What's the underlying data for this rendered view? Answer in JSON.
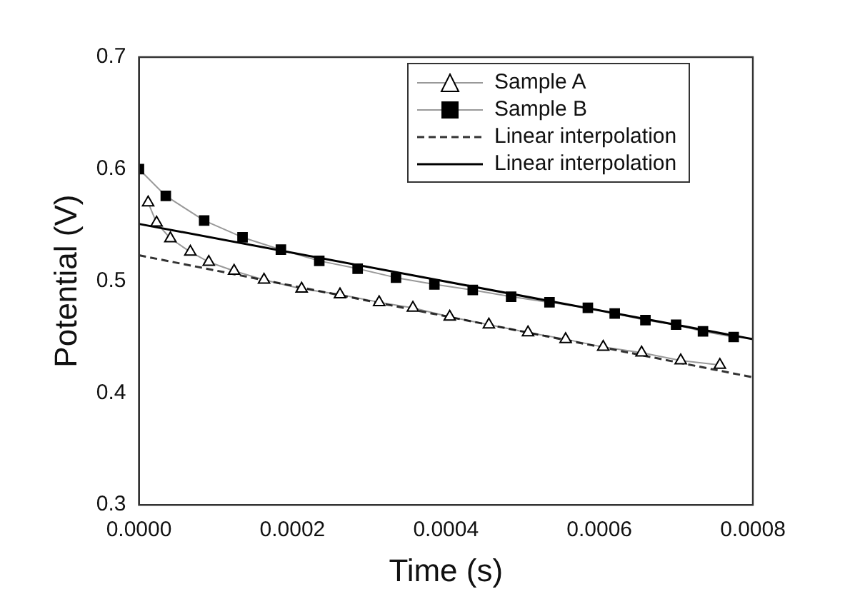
{
  "chart_data": {
    "type": "line",
    "xlabel": "Time (s)",
    "ylabel": "Potential (V)",
    "xlim": [
      0,
      0.0008
    ],
    "ylim": [
      0.3,
      0.7
    ],
    "xticks": [
      {
        "value": 0,
        "label": "0.0000"
      },
      {
        "value": 0.0002,
        "label": "0.0002"
      },
      {
        "value": 0.0004,
        "label": "0.0004"
      },
      {
        "value": 0.0006,
        "label": "0.0006"
      },
      {
        "value": 0.0008,
        "label": "0.0008"
      }
    ],
    "yticks": [
      0.3,
      0.4,
      0.5,
      0.6,
      0.7
    ],
    "grid": false,
    "legend": "top right",
    "series": [
      {
        "name": "Sample A",
        "color": "#000000",
        "marker": "triangle",
        "x": [
          1.2e-05,
          2.3e-05,
          4.1e-05,
          6.7e-05,
          9.1e-05,
          0.000124,
          0.000163,
          0.000212,
          0.000262,
          0.000313,
          0.000357,
          0.000405,
          0.000456,
          0.000507,
          0.000556,
          0.000605,
          0.000655,
          0.000706,
          0.000757
        ],
        "values": [
          0.57,
          0.552,
          0.538,
          0.526,
          0.517,
          0.509,
          0.501,
          0.493,
          0.488,
          0.481,
          0.476,
          0.468,
          0.461,
          0.454,
          0.448,
          0.441,
          0.436,
          0.429,
          0.425
        ]
      },
      {
        "name": "Sample B",
        "color": "#000000",
        "marker": "square",
        "x": [
          0,
          3.5e-05,
          8.5e-05,
          0.000135,
          0.000185,
          0.000235,
          0.000285,
          0.000335,
          0.000385,
          0.000435,
          0.000485,
          0.000535,
          0.000585,
          0.00062,
          0.00066,
          0.0007,
          0.000735,
          0.000775
        ],
        "values": [
          0.6,
          0.576,
          0.554,
          0.539,
          0.528,
          0.518,
          0.511,
          0.503,
          0.497,
          0.492,
          0.486,
          0.481,
          0.476,
          0.471,
          0.465,
          0.461,
          0.455,
          0.45
        ]
      },
      {
        "name": "Linear interpolation",
        "color": "#333333",
        "marker": "none",
        "line_style": "dashed",
        "x": [
          0,
          0.0008
        ],
        "values": [
          0.523,
          0.414
        ]
      },
      {
        "name": "Linear interpolation",
        "color": "#000000",
        "marker": "none",
        "line_style": "solid",
        "x": [
          0,
          0.0008
        ],
        "values": [
          0.551,
          0.448
        ]
      }
    ]
  }
}
